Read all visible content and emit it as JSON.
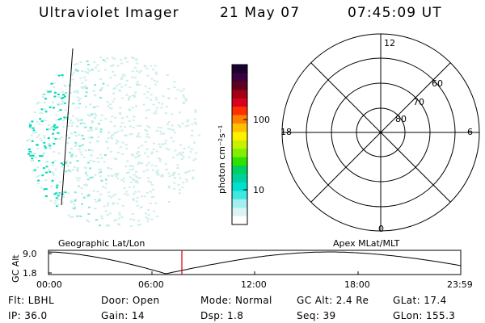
{
  "header": {
    "instrument": "Ultraviolet Imager",
    "date": "21 May 07",
    "time": "07:45:09 UT"
  },
  "colorbar": {
    "unit_label": "photon cm⁻²s⁻¹",
    "tick_labels": [
      "100",
      "10"
    ],
    "colors": [
      "#1a0030",
      "#3a0040",
      "#60001a",
      "#a00018",
      "#d8001a",
      "#ff3000",
      "#ff8000",
      "#ffc000",
      "#fff000",
      "#c8f000",
      "#80f000",
      "#30e000",
      "#00d060",
      "#00d0a0",
      "#00e0d0",
      "#40e8e0",
      "#a0f0f0",
      "#d8f4f4",
      "#ffffff"
    ]
  },
  "polar": {
    "mlt_labels": {
      "top": "12",
      "left": "18",
      "right": "6",
      "bottom": "0"
    },
    "lat_labels": [
      "60",
      "70",
      "80"
    ]
  },
  "timeline": {
    "left_label": "Geographic Lat/Lon",
    "right_label": "Apex MLat/MLT",
    "y_axis_label": "GC Alt",
    "y_ticks": [
      "9.0",
      "1.8"
    ],
    "x_ticks": [
      "00:00",
      "06:00",
      "12:00",
      "18:00",
      "23:59"
    ]
  },
  "info": {
    "filter": "Flt: LBHL",
    "ip": "IP: 36.0",
    "door": "Door: Open",
    "gain": "Gain: 14",
    "mode": "Mode: Normal",
    "dsp": "Dsp:    1.8",
    "gc_alt": "GC Alt: 2.4 Re",
    "seq": "Seq: 39",
    "glat": "GLat:  17.4",
    "glon": "GLon: 155.3"
  },
  "colors": {
    "accent_marker": "#d00000",
    "speckle": "#00d8b8"
  }
}
